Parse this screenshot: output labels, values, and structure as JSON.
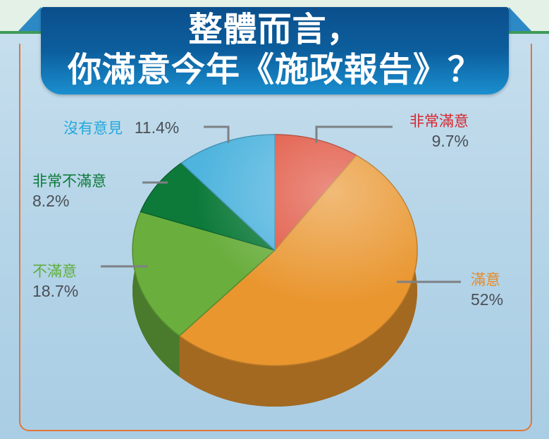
{
  "title": {
    "line1": "整體而言，",
    "line2": "你滿意今年《施政報告》？"
  },
  "chart_data": {
    "type": "pie",
    "title": "整體而言，你滿意今年《施政報告》？",
    "start": "12 o'clock, clockwise",
    "style": "3d",
    "slices": [
      {
        "label": "非常滿意",
        "value": 9.7,
        "value_label": "9.7%",
        "color": "#e0533f",
        "label_color": "#d7262f"
      },
      {
        "label": "滿意",
        "value": 52,
        "value_label": "52%",
        "color": "#e9962f",
        "label_color": "#e88a25"
      },
      {
        "label": "不滿意",
        "value": 18.7,
        "value_label": "18.7%",
        "color": "#6aae3d",
        "label_color": "#5fae3c"
      },
      {
        "label": "非常不滿意",
        "value": 8.2,
        "value_label": "8.2%",
        "color": "#0d7a3a",
        "label_color": "#0c7a3b"
      },
      {
        "label": "沒有意見",
        "value": 11.4,
        "value_label": "11.4%",
        "color": "#4fb4de",
        "label_color": "#23a8dc"
      }
    ]
  }
}
